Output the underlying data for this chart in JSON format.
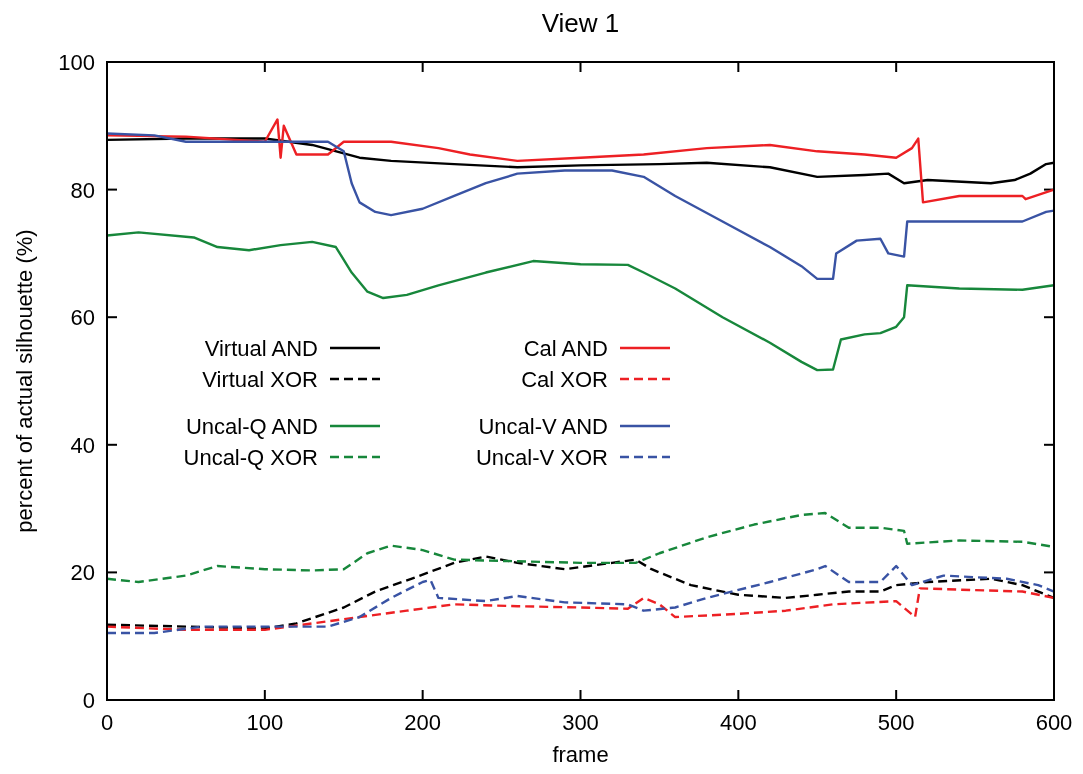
{
  "chart_data": {
    "type": "line",
    "title": "View 1",
    "xlabel": "frame",
    "ylabel": "percent of actual silhouette (%)",
    "xlim": [
      0,
      600
    ],
    "ylim": [
      0,
      100
    ],
    "xticks": [
      0,
      100,
      200,
      300,
      400,
      500,
      600
    ],
    "yticks": [
      0,
      20,
      40,
      60,
      80,
      100
    ],
    "grid": false,
    "legend": "center left",
    "marker": "none",
    "series": [
      {
        "name": "Virtual AND",
        "color": "#000000",
        "line_style": "solid",
        "x": [
          0,
          50,
          100,
          130,
          160,
          180,
          220,
          260,
          300,
          350,
          380,
          420,
          450,
          480,
          495,
          505,
          520,
          560,
          575,
          585,
          595,
          600
        ],
        "values": [
          87.8,
          88,
          88,
          87,
          85,
          84.5,
          84,
          83.5,
          83.8,
          84,
          84.2,
          83.5,
          82,
          82.3,
          82.5,
          81,
          81.5,
          81,
          81.5,
          82.5,
          84,
          84.2
        ]
      },
      {
        "name": "Virtual XOR",
        "color": "#000000",
        "line_style": "dashed",
        "x": [
          0,
          50,
          100,
          120,
          150,
          170,
          195,
          220,
          240,
          260,
          290,
          320,
          335,
          345,
          370,
          400,
          430,
          450,
          470,
          490,
          500,
          520,
          560,
          580,
          600
        ],
        "values": [
          11.8,
          11.5,
          11.2,
          12,
          14.5,
          17,
          19.2,
          21.5,
          22.5,
          21.5,
          20.5,
          21.5,
          22,
          20.5,
          18,
          16.5,
          16,
          16.5,
          17,
          17,
          18,
          18.5,
          19,
          18,
          16
        ]
      },
      {
        "name": "Uncal-Q AND",
        "color": "#17873b",
        "line_style": "solid",
        "x": [
          0,
          20,
          55,
          70,
          90,
          110,
          130,
          145,
          155,
          165,
          175,
          190,
          210,
          240,
          270,
          300,
          330,
          340,
          360,
          390,
          420,
          440,
          450,
          460,
          465,
          480,
          490,
          500,
          505,
          507,
          540,
          580,
          600
        ],
        "values": [
          72.8,
          73.3,
          72.5,
          71,
          70.5,
          71.3,
          71.8,
          71,
          67,
          64,
          63,
          63.5,
          65,
          67,
          68.8,
          68.3,
          68.2,
          67,
          64.5,
          60,
          56,
          53,
          51.7,
          51.8,
          56.5,
          57.3,
          57.5,
          58.5,
          60,
          65,
          64.5,
          64.3,
          65
        ]
      },
      {
        "name": "Uncal-Q XOR",
        "color": "#17873b",
        "line_style": "dashed",
        "x": [
          0,
          20,
          50,
          70,
          100,
          130,
          150,
          165,
          180,
          200,
          220,
          250,
          300,
          335,
          350,
          380,
          410,
          440,
          455,
          470,
          490,
          505,
          507,
          540,
          580,
          600
        ],
        "values": [
          19,
          18.5,
          19.5,
          21,
          20.5,
          20.3,
          20.5,
          23,
          24.2,
          23.5,
          22,
          21.8,
          21.5,
          21.5,
          23,
          25.5,
          27.5,
          29,
          29.3,
          27,
          27,
          26.5,
          24.5,
          25,
          24.8,
          24
        ]
      },
      {
        "name": "Cal AND",
        "color": "#ed2024",
        "line_style": "solid",
        "x": [
          0,
          50,
          100,
          108,
          110,
          112,
          120,
          140,
          150,
          180,
          210,
          230,
          260,
          300,
          340,
          380,
          420,
          450,
          480,
          500,
          510,
          514,
          517,
          540,
          580,
          582,
          600
        ],
        "values": [
          88.5,
          88.3,
          87.5,
          91,
          85,
          90,
          85.5,
          85.5,
          87.5,
          87.5,
          86.5,
          85.5,
          84.5,
          85,
          85.5,
          86.5,
          87,
          86,
          85.5,
          85,
          86.5,
          88,
          78,
          79,
          79,
          78.5,
          80
        ]
      },
      {
        "name": "Cal XOR",
        "color": "#ed2024",
        "line_style": "dashed",
        "x": [
          0,
          50,
          100,
          130,
          160,
          190,
          220,
          260,
          300,
          330,
          340,
          350,
          360,
          400,
          430,
          460,
          500,
          512,
          515,
          540,
          580,
          600
        ],
        "values": [
          11.5,
          11,
          11,
          12,
          13,
          14,
          15,
          14.7,
          14.5,
          14.3,
          16,
          15,
          13,
          13.5,
          14,
          15,
          15.5,
          13,
          17.5,
          17.3,
          17,
          16
        ]
      },
      {
        "name": "Uncal-V AND",
        "color": "#3953a4",
        "line_style": "solid",
        "x": [
          0,
          30,
          50,
          100,
          140,
          150,
          155,
          160,
          170,
          180,
          200,
          220,
          240,
          260,
          290,
          320,
          340,
          360,
          390,
          420,
          440,
          450,
          460,
          462,
          475,
          490,
          495,
          505,
          507,
          540,
          580,
          595,
          600
        ],
        "values": [
          88.8,
          88.5,
          87.5,
          87.5,
          87.5,
          86,
          81,
          78,
          76.5,
          76,
          77,
          79,
          81,
          82.5,
          83,
          83,
          82,
          79,
          75,
          71,
          68,
          66,
          66,
          70,
          72,
          72.3,
          70,
          69.5,
          75,
          75,
          75,
          76.5,
          76.7
        ]
      },
      {
        "name": "Uncal-V XOR",
        "color": "#3953a4",
        "line_style": "dashed",
        "x": [
          0,
          30,
          60,
          100,
          140,
          160,
          180,
          200,
          205,
          210,
          240,
          260,
          290,
          330,
          340,
          360,
          380,
          420,
          450,
          455,
          470,
          490,
          500,
          510,
          530,
          570,
          590,
          600
        ],
        "values": [
          10.5,
          10.5,
          11.5,
          11.5,
          11.5,
          13,
          16,
          18.5,
          18.8,
          16,
          15.5,
          16.3,
          15.3,
          15,
          14,
          14.5,
          16,
          18.5,
          20.5,
          21,
          18.5,
          18.5,
          21,
          18,
          19.5,
          19,
          18,
          17
        ]
      }
    ]
  }
}
